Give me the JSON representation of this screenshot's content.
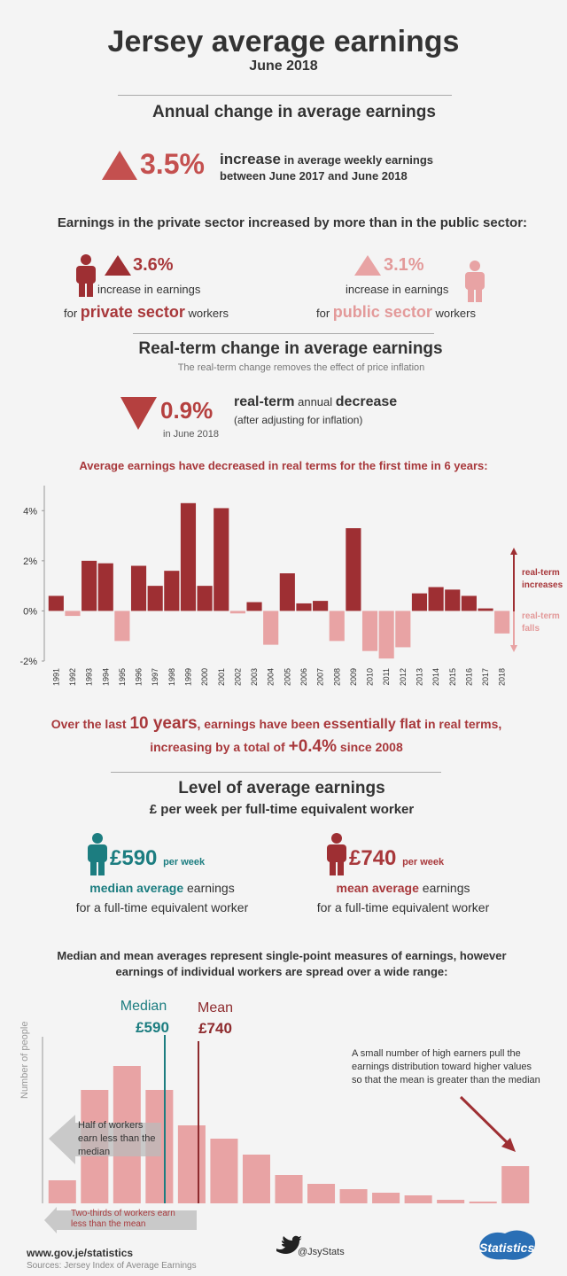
{
  "header": {
    "title": "Jersey average earnings",
    "subtitle": "June 2018"
  },
  "annual": {
    "heading": "Annual change in average earnings",
    "value": "3.5%",
    "word": "increase",
    "rest": "in average weekly earnings",
    "line2": "between June 2017 and June 2018"
  },
  "sector": {
    "heading": "Earnings in the private sector increased by more than in the public sector:",
    "private": {
      "value": "3.6%",
      "line1": "increase in earnings",
      "pre": "for",
      "name": "private sector",
      "post": "workers"
    },
    "public": {
      "value": "3.1%",
      "line1": "increase in earnings",
      "pre": "for",
      "name": "public sector",
      "post": "workers"
    }
  },
  "realterm": {
    "heading": "Real-term change in average earnings",
    "note": "The real-term change removes the effect of price inflation",
    "value": "0.9%",
    "when": "in June 2018",
    "word1": "real-term",
    "word2": "annual",
    "word3": "decrease",
    "sub": "(after adjusting for inflation)"
  },
  "summary": {
    "a": "Over the last",
    "b": "10 years",
    "c": ", earnings have been",
    "d": "essentially flat",
    "e": "in real terms,",
    "f": "increasing by a total of",
    "g": "+0.4%",
    "h": "since 2008"
  },
  "level": {
    "heading": "Level of average earnings",
    "sub": "£ per week per full-time equivalent worker",
    "median": {
      "value": "£590",
      "unit": "per week",
      "bold": "median average",
      "rest": "earnings",
      "line2": "for a full-time equivalent worker"
    },
    "mean": {
      "value": "£740",
      "unit": "per week",
      "bold": "mean average",
      "rest": "earnings",
      "line2": "for a full-time equivalent worker"
    }
  },
  "chart_data": [
    {
      "type": "bar",
      "title": "Average earnings have decreased in real terms for the first time in 6 years:",
      "categories": [
        "1991",
        "1992",
        "1993",
        "1994",
        "1995",
        "1996",
        "1997",
        "1998",
        "1999",
        "2000",
        "2001",
        "2002",
        "2003",
        "2004",
        "2005",
        "2006",
        "2007",
        "2008",
        "2009",
        "2010",
        "2011",
        "2012",
        "2013",
        "2014",
        "2015",
        "2016",
        "2017",
        "2018"
      ],
      "values": [
        0.6,
        -0.2,
        2.0,
        1.9,
        -1.2,
        1.8,
        1.0,
        1.6,
        4.3,
        1.0,
        4.1,
        -0.1,
        0.35,
        -1.35,
        1.5,
        0.3,
        0.4,
        -1.2,
        3.3,
        -1.6,
        -1.9,
        -1.45,
        0.7,
        0.95,
        0.85,
        0.6,
        0.1,
        -0.9
      ],
      "color": "#9e2f33",
      "negative_color": "#e8a3a4",
      "ylim": [
        -2,
        5
      ],
      "yticks": [
        {
          "value": 4,
          "label": "4%"
        },
        {
          "value": 2,
          "label": "2%"
        },
        {
          "value": 0,
          "label": "0%"
        },
        {
          "value": -2,
          "label": "-2%"
        }
      ],
      "annotations": [
        "real-term increases",
        "real-term falls"
      ]
    },
    {
      "type": "bar",
      "title": "Median and mean averages represent single-point measures of earnings, however earnings of individual workers are spread over a wide range:",
      "y_label": "Number of people",
      "categories": [
        null,
        null,
        null,
        null,
        null,
        null,
        null,
        null,
        null,
        null,
        null,
        null,
        null,
        null,
        null
      ],
      "values": [
        26,
        128,
        155,
        128,
        88,
        73,
        55,
        32,
        22,
        16,
        12,
        9,
        4,
        2,
        42
      ],
      "color": "#e8a3a4",
      "ylim": [
        0,
        160
      ],
      "markers": [
        {
          "name": "Median",
          "label": "£590",
          "color": "#1c7d80"
        },
        {
          "name": "Mean",
          "label": "£740",
          "color": "#8e2b2e"
        }
      ],
      "annotations": [
        "A small number of high earners pull the earnings distribution toward higher values so that the mean is greater than the median",
        "Half of workers earn less than the median",
        "Two-thirds of workers earn less than the mean"
      ]
    }
  ],
  "footer": {
    "site": "www.gov.je/statistics",
    "source": "Sources: Jersey Index of Average Earnings",
    "twitter": "@JsyStats",
    "logo": "Statistics"
  }
}
